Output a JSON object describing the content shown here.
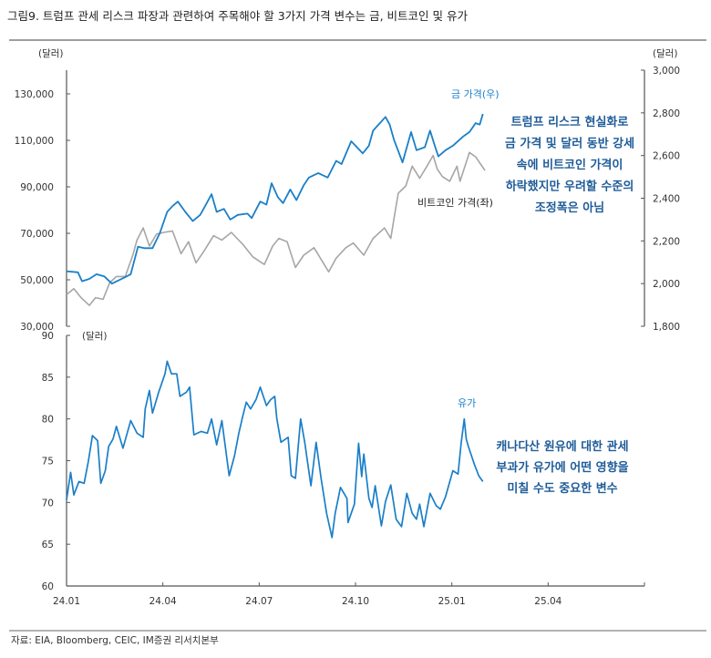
{
  "title": "그림9.  트럼프 관세 리스크 파장과 관련하여 주목해야 할 3가지 가격 변수는 금, 비트코인 및 유가",
  "source": "자료: EIA, Bloomberg, CEIC, IM증권 리서치본부",
  "colors": {
    "gold": "#1a7fc8",
    "bitcoin": "#a6a6a6",
    "oil": "#1a7fc8",
    "annotation": "#1f5c99"
  },
  "chart_data": [
    {
      "type": "line",
      "left_unit": "(달러)",
      "right_unit": "(달러)",
      "ylim_left": [
        30000,
        130000
      ],
      "ylim_right": [
        1800,
        3000
      ],
      "left_ticks": [
        "30,000",
        "50,000",
        "70,000",
        "90,000",
        "110,000",
        "130,000"
      ],
      "right_ticks": [
        "1,800",
        "2,000",
        "2,200",
        "2,400",
        "2,600",
        "2,800",
        "3,000"
      ],
      "annotation": [
        "트럼프 리스크 현실화로",
        "금 가격 및 달러 동반 강세",
        "속에 비트코인 가격이",
        "하락했지만 우려할 수준의",
        "조정폭은 아님"
      ],
      "series": [
        {
          "name": "금 가격(우)",
          "axis": "right",
          "points": [
            [
              "2024-01-01",
              2058
            ],
            [
              "2024-01-12",
              2053
            ],
            [
              "2024-01-16",
              2011
            ],
            [
              "2024-01-23",
              2022
            ],
            [
              "2024-01-30",
              2044
            ],
            [
              "2024-02-06",
              2034
            ],
            [
              "2024-02-13",
              2000
            ],
            [
              "2024-02-25",
              2030
            ],
            [
              "2024-03-01",
              2044
            ],
            [
              "2024-03-08",
              2173
            ],
            [
              "2024-03-14",
              2166
            ],
            [
              "2024-03-22",
              2166
            ],
            [
              "2024-03-29",
              2236
            ],
            [
              "2024-04-05",
              2336
            ],
            [
              "2024-04-10",
              2363
            ],
            [
              "2024-04-15",
              2384
            ],
            [
              "2024-04-22",
              2336
            ],
            [
              "2024-04-29",
              2293
            ],
            [
              "2024-05-06",
              2322
            ],
            [
              "2024-05-10",
              2356
            ],
            [
              "2024-05-17",
              2419
            ],
            [
              "2024-05-22",
              2336
            ],
            [
              "2024-05-29",
              2350
            ],
            [
              "2024-06-04",
              2300
            ],
            [
              "2024-06-11",
              2322
            ],
            [
              "2024-06-20",
              2328
            ],
            [
              "2024-06-24",
              2307
            ],
            [
              "2024-07-02",
              2384
            ],
            [
              "2024-07-08",
              2370
            ],
            [
              "2024-07-13",
              2470
            ],
            [
              "2024-07-19",
              2405
            ],
            [
              "2024-07-24",
              2377
            ],
            [
              "2024-07-31",
              2441
            ],
            [
              "2024-08-06",
              2391
            ],
            [
              "2024-08-13",
              2461
            ],
            [
              "2024-08-18",
              2497
            ],
            [
              "2024-08-27",
              2518
            ],
            [
              "2024-09-05",
              2497
            ],
            [
              "2024-09-13",
              2575
            ],
            [
              "2024-09-18",
              2560
            ],
            [
              "2024-09-27",
              2667
            ],
            [
              "2024-10-01",
              2646
            ],
            [
              "2024-10-08",
              2610
            ],
            [
              "2024-10-14",
              2646
            ],
            [
              "2024-10-18",
              2717
            ],
            [
              "2024-10-22",
              2738
            ],
            [
              "2024-10-30",
              2781
            ],
            [
              "2024-11-03",
              2745
            ],
            [
              "2024-11-07",
              2674
            ],
            [
              "2024-11-15",
              2568
            ],
            [
              "2024-11-23",
              2710
            ],
            [
              "2024-11-28",
              2625
            ],
            [
              "2024-12-06",
              2639
            ],
            [
              "2024-12-11",
              2717
            ],
            [
              "2024-12-16",
              2639
            ],
            [
              "2024-12-19",
              2596
            ],
            [
              "2024-12-26",
              2625
            ],
            [
              "2025-01-02",
              2646
            ],
            [
              "2025-01-12",
              2689
            ],
            [
              "2025-01-18",
              2710
            ],
            [
              "2025-01-24",
              2752
            ],
            [
              "2025-01-28",
              2745
            ],
            [
              "2025-01-31",
              2795
            ]
          ]
        },
        {
          "name": "비트코인 가격(좌)",
          "axis": "left",
          "points": [
            [
              "2024-01-01",
              43600
            ],
            [
              "2024-01-08",
              46200
            ],
            [
              "2024-01-15",
              42300
            ],
            [
              "2024-01-23",
              39000
            ],
            [
              "2024-01-29",
              42300
            ],
            [
              "2024-02-05",
              41600
            ],
            [
              "2024-02-11",
              48800
            ],
            [
              "2024-02-17",
              51400
            ],
            [
              "2024-02-25",
              51400
            ],
            [
              "2024-03-03",
              60600
            ],
            [
              "2024-03-07",
              67100
            ],
            [
              "2024-03-13",
              72300
            ],
            [
              "2024-03-19",
              64500
            ],
            [
              "2024-03-26",
              69700
            ],
            [
              "2024-04-02",
              70400
            ],
            [
              "2024-04-10",
              71000
            ],
            [
              "2024-04-18",
              61200
            ],
            [
              "2024-04-25",
              66400
            ],
            [
              "2024-05-02",
              57300
            ],
            [
              "2024-05-10",
              62500
            ],
            [
              "2024-05-19",
              69000
            ],
            [
              "2024-05-27",
              67100
            ],
            [
              "2024-06-05",
              70400
            ],
            [
              "2024-06-16",
              65100
            ],
            [
              "2024-06-25",
              59900
            ],
            [
              "2024-07-06",
              56600
            ],
            [
              "2024-07-14",
              64500
            ],
            [
              "2024-07-20",
              67800
            ],
            [
              "2024-07-28",
              66400
            ],
            [
              "2024-08-05",
              55300
            ],
            [
              "2024-08-13",
              60600
            ],
            [
              "2024-08-23",
              63800
            ],
            [
              "2024-09-06",
              53400
            ],
            [
              "2024-09-13",
              59300
            ],
            [
              "2024-09-22",
              63800
            ],
            [
              "2024-09-29",
              65800
            ],
            [
              "2024-10-09",
              60600
            ],
            [
              "2024-10-18",
              67800
            ],
            [
              "2024-10-29",
              72300
            ],
            [
              "2024-11-04",
              67800
            ],
            [
              "2024-11-07",
              76300
            ],
            [
              "2024-11-11",
              87200
            ],
            [
              "2024-11-18",
              90400
            ],
            [
              "2024-11-24",
              98900
            ],
            [
              "2024-12-01",
              93700
            ],
            [
              "2024-12-08",
              98900
            ],
            [
              "2024-12-14",
              103500
            ],
            [
              "2024-12-18",
              97600
            ],
            [
              "2024-12-23",
              94400
            ],
            [
              "2024-12-30",
              92400
            ],
            [
              "2025-01-06",
              98900
            ],
            [
              "2025-01-09",
              92400
            ],
            [
              "2025-01-18",
              104800
            ],
            [
              "2025-01-24",
              102900
            ],
            [
              "2025-01-29",
              99600
            ],
            [
              "2025-02-02",
              97000
            ]
          ]
        }
      ]
    },
    {
      "type": "line",
      "unit": "(달러)",
      "ylim": [
        60,
        90
      ],
      "y_ticks": [
        "60",
        "65",
        "70",
        "75",
        "80",
        "85",
        "90"
      ],
      "x_ticks": [
        "24.01",
        "24.04",
        "24.07",
        "24.10",
        "25.01",
        "25.04"
      ],
      "annotation": [
        "캐나다산 원유에 대한 관세",
        "부과가 유가에 어떤 영향을",
        "미칠 수도 중요한 변수"
      ],
      "series": [
        {
          "name": "유가",
          "points": [
            [
              "2024-01-01",
              70.3
            ],
            [
              "2024-01-05",
              73.6
            ],
            [
              "2024-01-08",
              70.9
            ],
            [
              "2024-01-13",
              72.5
            ],
            [
              "2024-01-18",
              72.3
            ],
            [
              "2024-01-22",
              74.9
            ],
            [
              "2024-01-26",
              78.0
            ],
            [
              "2024-01-31",
              77.4
            ],
            [
              "2024-02-03",
              72.3
            ],
            [
              "2024-02-07",
              73.8
            ],
            [
              "2024-02-10",
              76.7
            ],
            [
              "2024-02-14",
              77.6
            ],
            [
              "2024-02-17",
              79.1
            ],
            [
              "2024-02-23",
              76.5
            ],
            [
              "2024-03-01",
              79.8
            ],
            [
              "2024-03-07",
              78.3
            ],
            [
              "2024-03-13",
              77.8
            ],
            [
              "2024-03-15",
              81.2
            ],
            [
              "2024-03-19",
              83.4
            ],
            [
              "2024-03-22",
              80.7
            ],
            [
              "2024-03-28",
              83.2
            ],
            [
              "2024-04-03",
              85.4
            ],
            [
              "2024-04-05",
              86.9
            ],
            [
              "2024-04-09",
              85.4
            ],
            [
              "2024-04-14",
              85.4
            ],
            [
              "2024-04-17",
              82.7
            ],
            [
              "2024-04-23",
              83.2
            ],
            [
              "2024-04-26",
              83.8
            ],
            [
              "2024-04-30",
              78.1
            ],
            [
              "2024-05-07",
              78.5
            ],
            [
              "2024-05-13",
              78.3
            ],
            [
              "2024-05-17",
              80.0
            ],
            [
              "2024-05-22",
              76.9
            ],
            [
              "2024-05-27",
              79.8
            ],
            [
              "2024-06-03",
              73.2
            ],
            [
              "2024-06-08",
              75.6
            ],
            [
              "2024-06-12",
              78.3
            ],
            [
              "2024-06-16",
              80.5
            ],
            [
              "2024-06-19",
              82.0
            ],
            [
              "2024-06-23",
              81.2
            ],
            [
              "2024-06-28",
              82.3
            ],
            [
              "2024-07-02",
              83.8
            ],
            [
              "2024-07-08",
              81.6
            ],
            [
              "2024-07-12",
              82.3
            ],
            [
              "2024-07-16",
              82.7
            ],
            [
              "2024-07-18",
              80.1
            ],
            [
              "2024-07-22",
              77.2
            ],
            [
              "2024-07-29",
              77.8
            ],
            [
              "2024-08-01",
              73.2
            ],
            [
              "2024-08-05",
              72.9
            ],
            [
              "2024-08-10",
              80.0
            ],
            [
              "2024-08-14",
              77.2
            ],
            [
              "2024-08-20",
              72.0
            ],
            [
              "2024-08-25",
              77.2
            ],
            [
              "2024-08-30",
              72.7
            ],
            [
              "2024-09-04",
              68.7
            ],
            [
              "2024-09-09",
              65.8
            ],
            [
              "2024-09-12",
              68.7
            ],
            [
              "2024-09-17",
              71.8
            ],
            [
              "2024-09-23",
              70.5
            ],
            [
              "2024-09-24",
              67.6
            ],
            [
              "2024-09-30",
              69.8
            ],
            [
              "2024-10-04",
              77.1
            ],
            [
              "2024-10-07",
              73.1
            ],
            [
              "2024-10-09",
              75.8
            ],
            [
              "2024-10-14",
              70.5
            ],
            [
              "2024-10-17",
              69.4
            ],
            [
              "2024-10-20",
              72.0
            ],
            [
              "2024-10-26",
              67.2
            ],
            [
              "2024-10-30",
              70.1
            ],
            [
              "2024-11-04",
              72.1
            ],
            [
              "2024-11-09",
              68.0
            ],
            [
              "2024-11-14",
              67.1
            ],
            [
              "2024-11-19",
              71.1
            ],
            [
              "2024-11-24",
              68.7
            ],
            [
              "2024-11-28",
              68.0
            ],
            [
              "2024-12-01",
              69.8
            ],
            [
              "2024-12-05",
              67.1
            ],
            [
              "2024-12-11",
              71.1
            ],
            [
              "2024-12-17",
              69.6
            ],
            [
              "2024-12-21",
              69.2
            ],
            [
              "2024-12-26",
              70.7
            ],
            [
              "2025-01-02",
              73.8
            ],
            [
              "2025-01-07",
              73.4
            ],
            [
              "2025-01-10",
              77.1
            ],
            [
              "2025-01-13",
              80.0
            ],
            [
              "2025-01-15",
              77.6
            ],
            [
              "2025-01-17",
              76.7
            ],
            [
              "2025-01-23",
              74.5
            ],
            [
              "2025-01-27",
              73.2
            ],
            [
              "2025-01-31",
              72.5
            ]
          ]
        }
      ]
    }
  ]
}
